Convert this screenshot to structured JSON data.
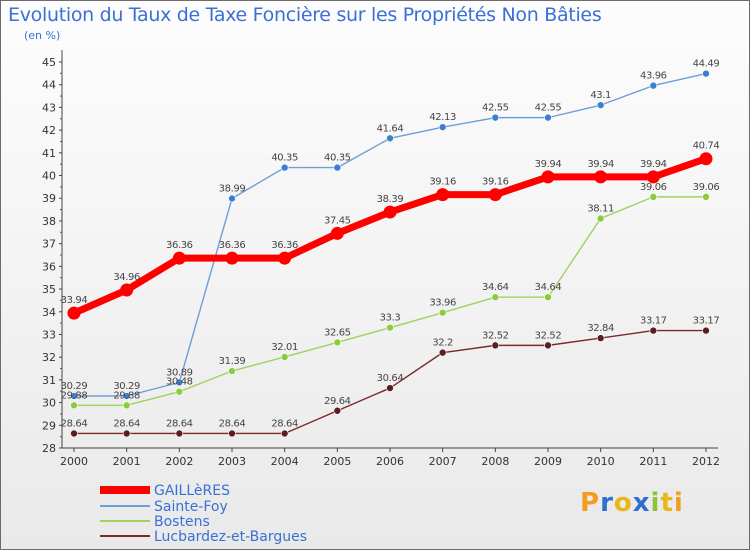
{
  "chart_data": {
    "type": "line",
    "title": "Evolution du Taux de Taxe Foncière sur les Propriétés Non Bâties",
    "ylabel": "(en %)",
    "x": [
      "2000",
      "2001",
      "2002",
      "2003",
      "2004",
      "2005",
      "2006",
      "2007",
      "2008",
      "2009",
      "2010",
      "2011",
      "2012"
    ],
    "y_ticks": [
      "28",
      "29",
      "30",
      "31",
      "32",
      "33",
      "34",
      "35",
      "36",
      "37",
      "38",
      "39",
      "40",
      "41",
      "42",
      "43",
      "44",
      "45"
    ],
    "ylim": [
      28,
      45
    ],
    "grid": false,
    "legend_position": "bottom-left",
    "series": [
      {
        "name": "GAILLèRES",
        "color": "#ff0000",
        "values": [
          33.94,
          34.96,
          36.36,
          36.36,
          36.36,
          37.45,
          38.39,
          39.16,
          39.16,
          39.94,
          39.94,
          39.94,
          40.74
        ],
        "labels": [
          "33.94",
          "34.96",
          "36.36",
          "36.36",
          "36.36",
          "37.45",
          "38.39",
          "39.16",
          "39.16",
          "39.94",
          "39.94",
          "39.94",
          "40.74"
        ]
      },
      {
        "name": "Sainte-Foy",
        "color": "#6b9fd6",
        "marker_color": "#3b7fd0",
        "values": [
          30.29,
          30.29,
          30.89,
          38.99,
          40.35,
          40.35,
          41.64,
          42.13,
          42.55,
          42.55,
          43.1,
          43.96,
          44.49
        ],
        "labels": [
          "30.29",
          "30.29",
          "30.89",
          "38.99",
          "40.35",
          "40.35",
          "41.64",
          "42.13",
          "42.55",
          "42.55",
          "43.1",
          "43.96",
          "44.49"
        ]
      },
      {
        "name": "Bostens",
        "color": "#9ed35e",
        "marker_color": "#8acc3c",
        "values": [
          29.88,
          29.88,
          30.48,
          31.39,
          32.01,
          32.65,
          33.3,
          33.96,
          34.64,
          34.64,
          38.11,
          39.06,
          39.06
        ],
        "labels": [
          "29.88",
          "29.88",
          "30.48",
          "31.39",
          "32.01",
          "32.65",
          "33.3",
          "33.96",
          "34.64",
          "34.64",
          "38.11",
          "39.06",
          "39.06"
        ]
      },
      {
        "name": "Lucbardez-et-Bargues",
        "color": "#7a2a2a",
        "marker_color": "#5a1e1e",
        "values": [
          28.64,
          28.64,
          28.64,
          28.64,
          28.64,
          29.64,
          30.64,
          32.2,
          32.52,
          32.52,
          32.84,
          33.17,
          33.17
        ],
        "labels": [
          "28.64",
          "28.64",
          "28.64",
          "28.64",
          "28.64",
          "29.64",
          "30.64",
          "32.2",
          "32.52",
          "32.52",
          "32.84",
          "33.17",
          "33.17"
        ]
      }
    ]
  },
  "logo": {
    "letters": [
      "P",
      "r",
      "o",
      "x",
      "i",
      "t",
      "i"
    ],
    "colors": [
      "#f39c1f",
      "#2f6fd0",
      "#e8b818",
      "#2f6fd0",
      "#8ac43a",
      "#e8b818",
      "#f0a020"
    ]
  }
}
